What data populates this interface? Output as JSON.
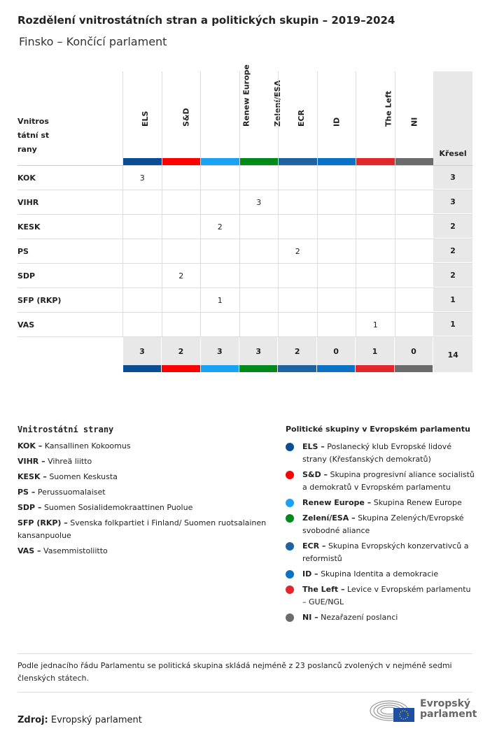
{
  "title": "Rozdělení vnitrostátních stran a politických skupin – 2019–2024",
  "subtitle": "Finsko – Končící parlament",
  "chart_data": {
    "type": "table",
    "row_header": "Vnitrostátní strany",
    "seats_header": "Křesel",
    "groups": [
      {
        "name": "ELS",
        "color": "#0b4d92"
      },
      {
        "name": "S&D",
        "color": "#ff0000"
      },
      {
        "name": "Renew Europe",
        "color": "#1aa3f5"
      },
      {
        "name": "Zelení/ESA",
        "color": "#008a1a"
      },
      {
        "name": "ECR",
        "color": "#1f63a0"
      },
      {
        "name": "ID",
        "color": "#0a72c6"
      },
      {
        "name": "The Left",
        "color": "#e1262c"
      },
      {
        "name": "NI",
        "color": "#6b6b6b"
      }
    ],
    "rows": [
      {
        "party": "KOK",
        "values": [
          3,
          null,
          null,
          null,
          null,
          null,
          null,
          null
        ],
        "seats": 3
      },
      {
        "party": "VIHR",
        "values": [
          null,
          null,
          null,
          3,
          null,
          null,
          null,
          null
        ],
        "seats": 3
      },
      {
        "party": "KESK",
        "values": [
          null,
          null,
          2,
          null,
          null,
          null,
          null,
          null
        ],
        "seats": 2
      },
      {
        "party": "PS",
        "values": [
          null,
          null,
          null,
          null,
          2,
          null,
          null,
          null
        ],
        "seats": 2
      },
      {
        "party": "SDP",
        "values": [
          null,
          2,
          null,
          null,
          null,
          null,
          null,
          null
        ],
        "seats": 2
      },
      {
        "party": "SFP (RKP)",
        "values": [
          null,
          null,
          1,
          null,
          null,
          null,
          null,
          null
        ],
        "seats": 1
      },
      {
        "party": "VAS",
        "values": [
          null,
          null,
          null,
          null,
          null,
          null,
          1,
          null
        ],
        "seats": 1
      }
    ],
    "totals": [
      3,
      2,
      3,
      3,
      2,
      0,
      1,
      0
    ],
    "total_seats": 14
  },
  "legend_parties": {
    "title": "Vnitrostátní strany",
    "items": [
      {
        "abbr": "KOK –",
        "name": "Kansallinen Kokoomus"
      },
      {
        "abbr": "VIHR –",
        "name": "Vihreä liitto"
      },
      {
        "abbr": "KESK –",
        "name": "Suomen Keskusta"
      },
      {
        "abbr": "PS –",
        "name": "Perussuomalaiset"
      },
      {
        "abbr": "SDP –",
        "name": "Suomen Sosialidemokraattinen Puolue"
      },
      {
        "abbr": "SFP (RKP) –",
        "name": "Svenska folkpartiet i Finland/ Suomen ruotsalainen kansanpuolue"
      },
      {
        "abbr": "VAS –",
        "name": "Vasemmistoliitto"
      }
    ]
  },
  "legend_groups": {
    "title": "Politické skupiny v Evropském parlamentu",
    "items": [
      {
        "abbr": "ELS –",
        "name": "Poslanecký klub Evropské lidové strany (Křesťanských demokratů)"
      },
      {
        "abbr": "S&D –",
        "name": "Skupina progresivní aliance socialistů a demokratů v Evropském parlamentu"
      },
      {
        "abbr": "Renew Europe –",
        "name": "Skupina Renew Europe"
      },
      {
        "abbr": "Zelení/ESA –",
        "name": "Skupina Zelených/Evropské svobodné aliance"
      },
      {
        "abbr": "ECR –",
        "name": "Skupina Evropských konzervativců a reformistů"
      },
      {
        "abbr": "ID –",
        "name": "Skupina Identita a demokracie"
      },
      {
        "abbr": "The Left –",
        "name": "Levice v Evropském parlamentu – GUE/NGL"
      },
      {
        "abbr": "NI –",
        "name": "Nezařazení poslanci"
      }
    ]
  },
  "note": "Podle jednacího řádu Parlamentu se politická skupina skládá nejméně z 23 poslanců zvolených v nejméně sedmi členských státech.",
  "source": {
    "label": "Zdroj:",
    "value": "Evropský parlament"
  },
  "logo": {
    "line1": "Evropský",
    "line2": "parlament"
  }
}
